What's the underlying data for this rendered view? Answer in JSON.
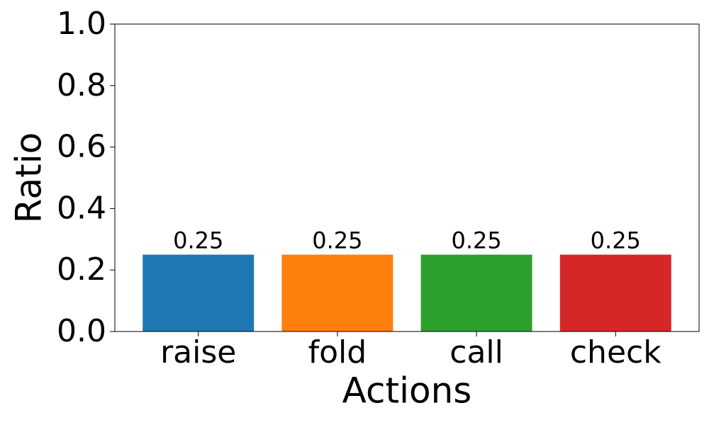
{
  "chart_data": {
    "type": "bar",
    "xlabel": "Actions",
    "ylabel": "Ratio",
    "categories": [
      "raise",
      "fold",
      "call",
      "check"
    ],
    "values": [
      0.25,
      0.25,
      0.25,
      0.25
    ],
    "colors": [
      "#1f77b4",
      "#ff7f0e",
      "#2ca02c",
      "#d62728"
    ],
    "ylim": [
      0,
      1
    ],
    "yticks": [
      {
        "value": 0,
        "label": "0.0"
      },
      0.2,
      0.4,
      0.6,
      0.8,
      {
        "value": 1,
        "label": "1.0"
      }
    ],
    "grid": false
  }
}
